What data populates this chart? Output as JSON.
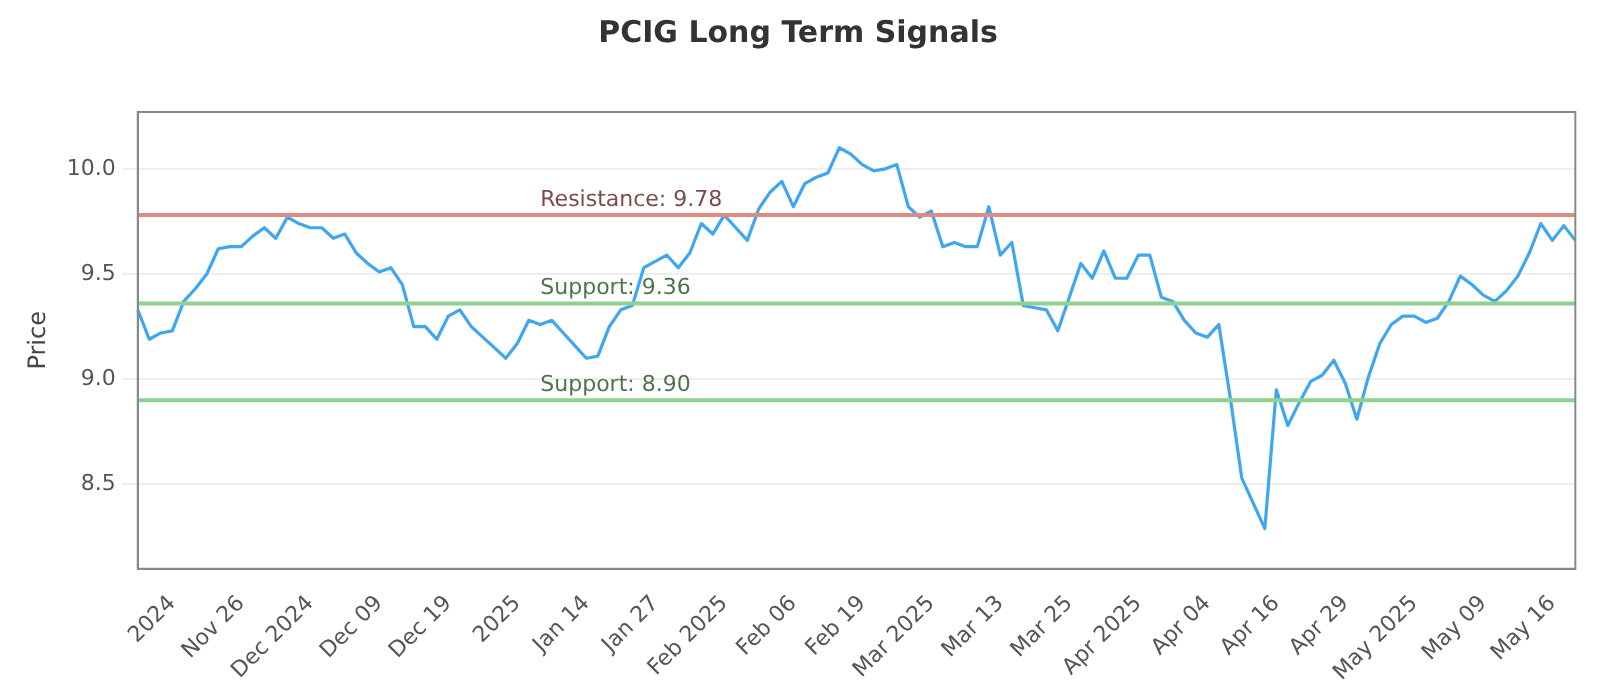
{
  "chart_data": {
    "type": "line",
    "title": "PCIG Long Term Signals",
    "ylabel": "Price",
    "categories": [
      null,
      null,
      null,
      "2024",
      null,
      null,
      null,
      null,
      null,
      "Nov 26",
      null,
      null,
      null,
      null,
      null,
      "Dec 2024",
      null,
      null,
      null,
      null,
      null,
      "Dec 09",
      null,
      null,
      null,
      null,
      null,
      "Dec 19",
      null,
      null,
      null,
      null,
      null,
      "2025",
      null,
      null,
      null,
      null,
      null,
      "Jan 14",
      null,
      null,
      null,
      null,
      null,
      "Jan 27",
      null,
      null,
      null,
      null,
      null,
      "Feb 2025",
      null,
      null,
      null,
      null,
      null,
      "Feb 06",
      null,
      null,
      null,
      null,
      null,
      "Feb 19",
      null,
      null,
      null,
      null,
      null,
      "Mar 2025",
      null,
      null,
      null,
      null,
      null,
      "Mar 13",
      null,
      null,
      null,
      null,
      null,
      "Mar 25",
      null,
      null,
      null,
      null,
      null,
      "Apr 2025",
      null,
      null,
      null,
      null,
      null,
      "Apr 04",
      null,
      null,
      null,
      null,
      null,
      "Apr 16",
      null,
      null,
      null,
      null,
      null,
      "Apr 29",
      null,
      null,
      null,
      null,
      null,
      "May 2025",
      null,
      null,
      null,
      null,
      null,
      "May 09",
      null,
      null,
      null,
      null,
      null,
      "May 16",
      null,
      null
    ],
    "series": [
      {
        "color": "#3fa6f0",
        "values": [
          9.33,
          9.19,
          9.22,
          9.23,
          9.37,
          9.43,
          9.5,
          9.62,
          9.63,
          9.63,
          9.68,
          9.72,
          9.67,
          9.77,
          9.74,
          9.72,
          9.72,
          9.67,
          9.69,
          9.6,
          9.55,
          9.51,
          9.53,
          9.45,
          9.25,
          9.25,
          9.19,
          9.3,
          9.33,
          9.25,
          9.2,
          9.15,
          9.1,
          9.17,
          9.28,
          9.26,
          9.28,
          9.22,
          9.16,
          9.1,
          9.11,
          9.25,
          9.33,
          9.35,
          9.53,
          9.56,
          9.59,
          9.53,
          9.6,
          9.74,
          9.69,
          9.78,
          9.72,
          9.66,
          9.81,
          9.89,
          9.94,
          9.82,
          9.93,
          9.96,
          9.98,
          10.1,
          10.07,
          10.02,
          9.99,
          10.0,
          10.02,
          9.82,
          9.77,
          9.8,
          9.63,
          9.65,
          9.63,
          9.63,
          9.82,
          9.59,
          9.65,
          9.35,
          9.34,
          9.33,
          9.23,
          9.39,
          9.55,
          9.48,
          9.61,
          9.48,
          9.48,
          9.59,
          9.59,
          9.39,
          9.37,
          9.28,
          9.22,
          9.2,
          9.26,
          8.91,
          8.53,
          8.41,
          8.29,
          8.95,
          8.78,
          8.89,
          8.99,
          9.02,
          9.09,
          8.98,
          8.81,
          9.01,
          9.17,
          9.26,
          9.3,
          9.3,
          9.27,
          9.29,
          9.37,
          9.49,
          9.45,
          9.4,
          9.37,
          9.42,
          9.49,
          9.6,
          9.74,
          9.66,
          9.73,
          9.66
        ]
      }
    ],
    "ylim": [
      8.1,
      10.27
    ],
    "yticks": [
      {
        "value": 8.5,
        "label": "8.5"
      },
      {
        "value": 9,
        "label": "9.0"
      },
      {
        "value": 9.5,
        "label": "9.5"
      },
      {
        "value": 10,
        "label": "10.0"
      }
    ],
    "ref_lines": [
      {
        "axis": "y",
        "value": 9.78,
        "label": "Resistance: 9.78",
        "color": "#e08a84"
      },
      {
        "axis": "y",
        "value": 9.36,
        "label": "Support: 9.36",
        "color": "#8fd18f"
      },
      {
        "axis": "y",
        "value": 8.9,
        "label": "Support: 8.90",
        "color": "#8fd18f"
      }
    ],
    "grid": "y",
    "marker": "none",
    "line_style": "solid",
    "legend": false
  }
}
